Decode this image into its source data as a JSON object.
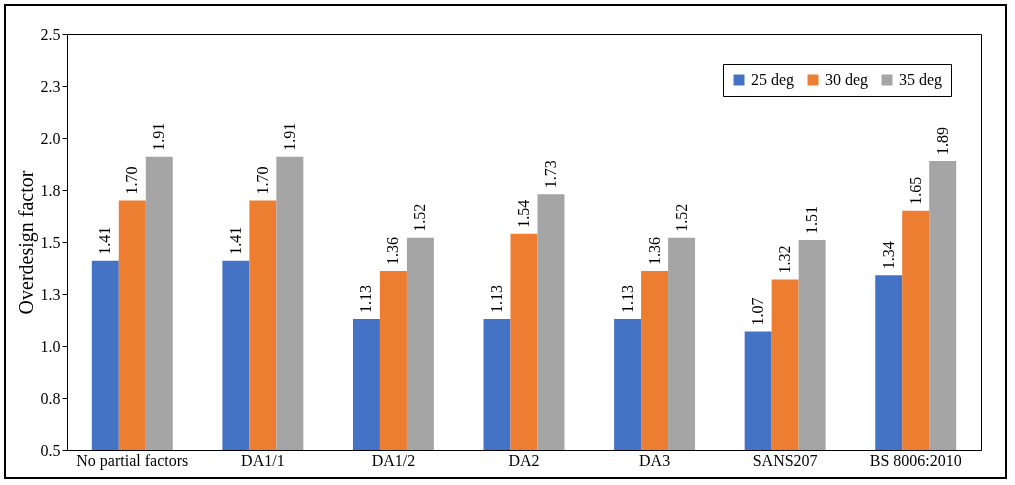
{
  "chart_data": {
    "type": "bar",
    "ylabel": "Overdesign factor",
    "categories": [
      "No partial factors",
      "DA1/1",
      "DA1/2",
      "DA2",
      "DA3",
      "SANS207",
      "BS 8006:2010"
    ],
    "series": [
      {
        "name": "25 deg",
        "color": "#4472c4",
        "values": [
          1.41,
          1.41,
          1.13,
          1.13,
          1.13,
          1.07,
          1.34
        ],
        "value_labels": [
          "1.41",
          "1.41",
          "1.13",
          "1.13",
          "1.13",
          "1.07",
          "1.34"
        ]
      },
      {
        "name": "30 deg",
        "color": "#ed7d31",
        "values": [
          1.7,
          1.7,
          1.36,
          1.54,
          1.36,
          1.32,
          1.65
        ],
        "value_labels": [
          "1.70",
          "1.70",
          "1.36",
          "1.54",
          "1.36",
          "1.32",
          "1.65"
        ]
      },
      {
        "name": "35 deg",
        "color": "#a5a5a5",
        "values": [
          1.91,
          1.91,
          1.52,
          1.73,
          1.52,
          1.51,
          1.89
        ],
        "value_labels": [
          "1.91",
          "1.91",
          "1.52",
          "1.73",
          "1.52",
          "1.51",
          "1.89"
        ]
      }
    ],
    "ylim": [
      0.5,
      2.5
    ],
    "yticks": [
      0.5,
      {
        "value": 0.75,
        "label": "0.8"
      },
      {
        "value": 1,
        "label": "1.0"
      },
      {
        "value": 1.25,
        "label": "1.3"
      },
      1.5,
      {
        "value": 1.75,
        "label": "1.8"
      },
      {
        "value": 2,
        "label": "2.0"
      },
      {
        "value": 2.25,
        "label": "2.3"
      },
      2.5
    ],
    "grid": false,
    "legend": "top right"
  }
}
